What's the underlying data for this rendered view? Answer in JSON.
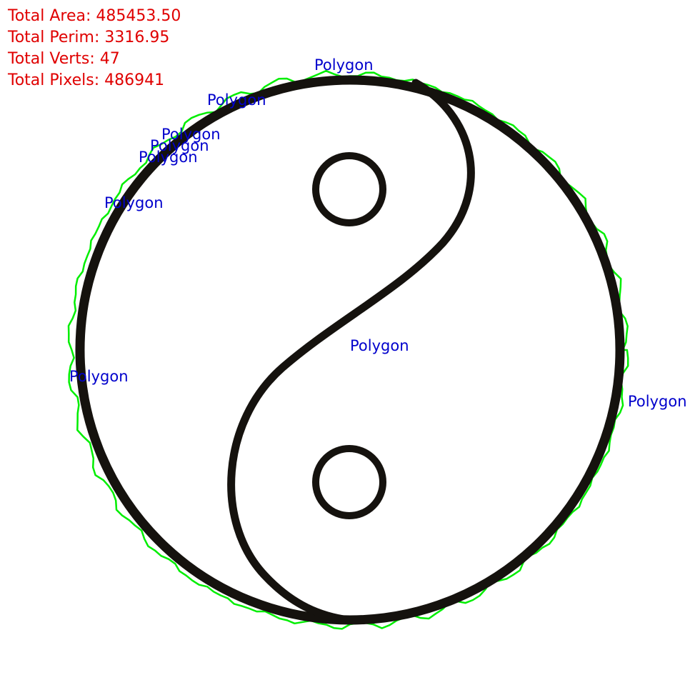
{
  "stats": {
    "area_label": "Total Area: 485453.50",
    "perim_label": "Total Perim: 3316.95",
    "verts_label": "Total Verts: 47",
    "pixels_label": "Total Pixels: 486941",
    "color": "#e00000"
  },
  "polygon_labels": {
    "text": "Polygon",
    "count": 9,
    "color": "#0000cc"
  },
  "contour": {
    "color": "#00ee00"
  },
  "symbol": {
    "name": "yin-yang",
    "stroke_color": "#15120e",
    "fill_color": "#ffffff"
  }
}
